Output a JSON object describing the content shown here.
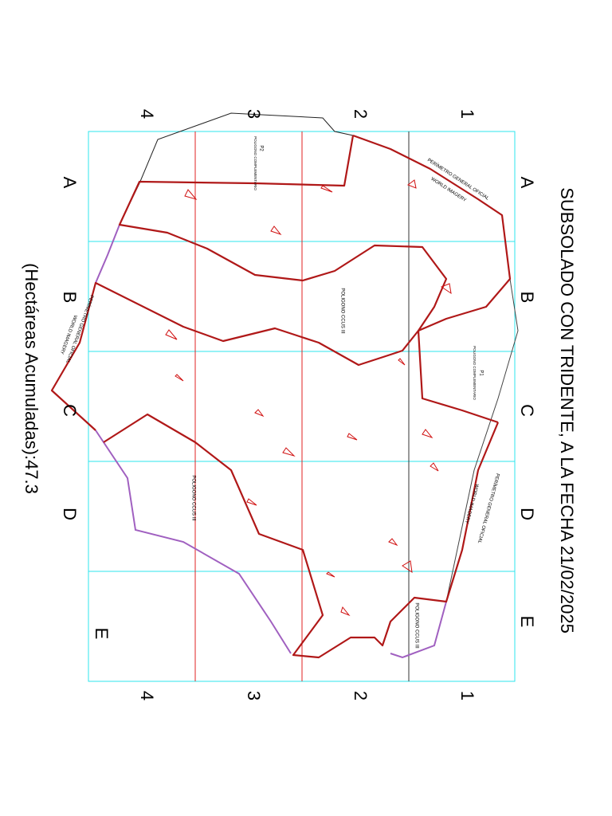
{
  "header": {
    "title": "SUBSOLADO CON TRIDENTE,  A LA FECHA 21/02/2025",
    "subtitle": "(Hectáreas Acumuladas):47.3"
  },
  "grid": {
    "rows": [
      "A",
      "B",
      "C",
      "D",
      "E"
    ],
    "columns": [
      "1",
      "2",
      "3",
      "4"
    ]
  },
  "labels": {
    "perimeter": "PERÍMETRO GENERAL OFICIAL",
    "imagery": "WORLD IMAGERY",
    "p1": "P1",
    "p2": "P2",
    "complementary": "POLIGONO COMPLEMENTARIO",
    "ccus": "POLIGONO CCUS III"
  }
}
